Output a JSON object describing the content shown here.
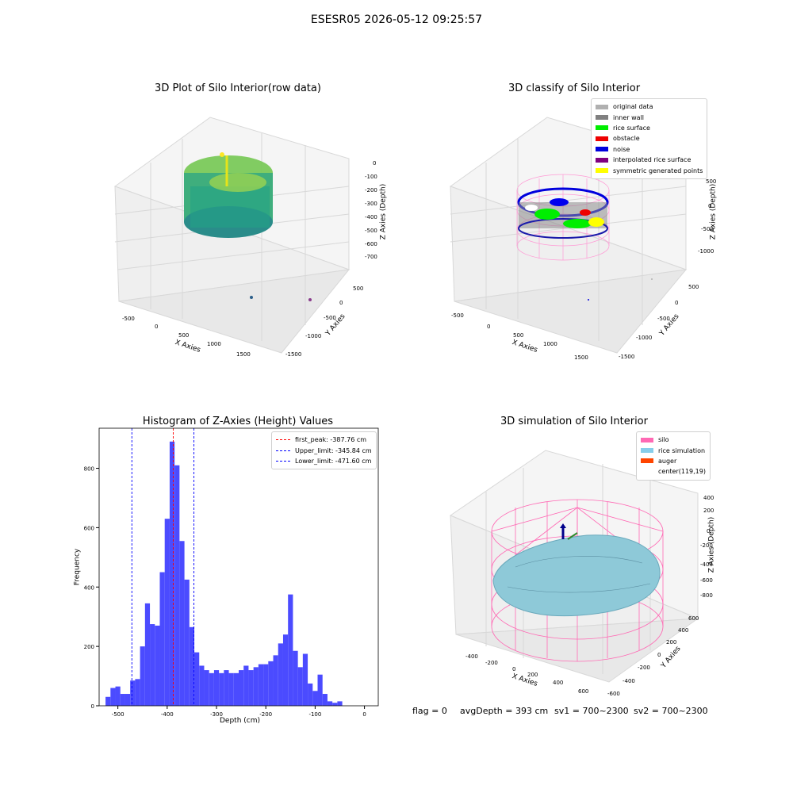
{
  "suptitle": "ESESR05 2026-05-12 09:25:57",
  "panel_raw": {
    "title": "3D Plot of Silo Interior(row data)",
    "xlabel": "X Axies",
    "ylabel": "Y Axies",
    "zlabel": "Z Axies (Depth)",
    "xticks": [
      "-500",
      "0",
      "500",
      "1000",
      "1500"
    ],
    "yticks": [
      "500",
      "0",
      "-500",
      "-1000",
      "-1500"
    ],
    "zticks": [
      "0",
      "-100",
      "-200",
      "-300",
      "-400",
      "-500",
      "-600",
      "-700"
    ]
  },
  "panel_classify": {
    "title": "3D classify of Silo Interior",
    "xlabel": "X Axies",
    "ylabel": "Y Axies",
    "zlabel": "Z Axies (Depth)",
    "xticks": [
      "-500",
      "0",
      "500",
      "1000",
      "1500"
    ],
    "yticks": [
      "500",
      "0",
      "-500",
      "-1000",
      "-1500"
    ],
    "zticks": [
      "500",
      "0",
      "-500",
      "-1000"
    ],
    "legend": [
      {
        "label": "original data",
        "color": "#b0b0b0"
      },
      {
        "label": "inner wall",
        "color": "#808080"
      },
      {
        "label": "rice surface",
        "color": "#00ee00"
      },
      {
        "label": "obstacle",
        "color": "#ee0000"
      },
      {
        "label": "noise",
        "color": "#0000dd"
      },
      {
        "label": "interpolated rice surface",
        "color": "#800080"
      },
      {
        "label": "symmetric generated points",
        "color": "#ffff00"
      }
    ]
  },
  "panel_sim": {
    "title": "3D simulation of Silo Interior",
    "xlabel": "X Axies",
    "ylabel": "Y Axies",
    "zlabel": "Z Axies (Depth)",
    "xticks": [
      "-400",
      "-200",
      "0",
      "200",
      "400",
      "600"
    ],
    "yticks": [
      "600",
      "400",
      "200",
      "0",
      "-200",
      "-400",
      "-600"
    ],
    "zticks": [
      "400",
      "200",
      "0",
      "-200",
      "-400",
      "-600",
      "-800"
    ],
    "legend": [
      {
        "label": "silo",
        "color": "#ff69b4"
      },
      {
        "label": "rice simulation",
        "color": "#87ceeb"
      },
      {
        "label": "auger",
        "color": "#ff4500"
      },
      {
        "label": "center(119,19)",
        "color": ""
      }
    ],
    "status": {
      "flag": "flag = 0",
      "avg": "avgDepth = 393 cm",
      "sv1": "sv1 = 700~2300",
      "sv2": "sv2 = 700~2300"
    }
  },
  "chart_data": [
    {
      "type": "bar",
      "title": "Histogram of Z-Axies (Height) Values",
      "xlabel": "Depth (cm)",
      "ylabel": "Frequency",
      "bar_color": "#4b4bff",
      "xlim": [
        -538,
        28
      ],
      "ylim": [
        0,
        935
      ],
      "xticks": [
        -500,
        -400,
        -300,
        -200,
        -100,
        0
      ],
      "yticks": [
        0,
        200,
        400,
        600,
        800
      ],
      "bin_width": 10,
      "bin_starts": [
        -525,
        -515,
        -505,
        -495,
        -485,
        -475,
        -465,
        -455,
        -445,
        -435,
        -425,
        -415,
        -405,
        -395,
        -385,
        -375,
        -365,
        -355,
        -345,
        -335,
        -325,
        -315,
        -305,
        -295,
        -285,
        -275,
        -265,
        -255,
        -245,
        -235,
        -225,
        -215,
        -205,
        -195,
        -185,
        -175,
        -165,
        -155,
        -145,
        -135,
        -125,
        -115,
        -105,
        -95,
        -85,
        -75,
        -65,
        -55,
        -45,
        -35,
        -25,
        -15,
        -5
      ],
      "values": [
        30,
        60,
        65,
        40,
        40,
        85,
        90,
        200,
        345,
        275,
        270,
        450,
        630,
        890,
        810,
        555,
        425,
        265,
        180,
        135,
        120,
        110,
        120,
        110,
        120,
        110,
        110,
        120,
        135,
        120,
        130,
        140,
        140,
        150,
        170,
        210,
        240,
        375,
        185,
        130,
        175,
        75,
        50,
        105,
        40,
        15,
        10,
        15,
        0,
        0,
        0,
        0,
        0
      ],
      "lines": [
        {
          "label": "first_peak: -387.76 cm",
          "value": -387.76,
          "color": "#ff0000"
        },
        {
          "label": "Upper_limit: -345.84 cm",
          "value": -345.84,
          "color": "#0000ff"
        },
        {
          "label": "Lower_limit: -471.60 cm",
          "value": -471.6,
          "color": "#0000ff"
        }
      ]
    }
  ]
}
